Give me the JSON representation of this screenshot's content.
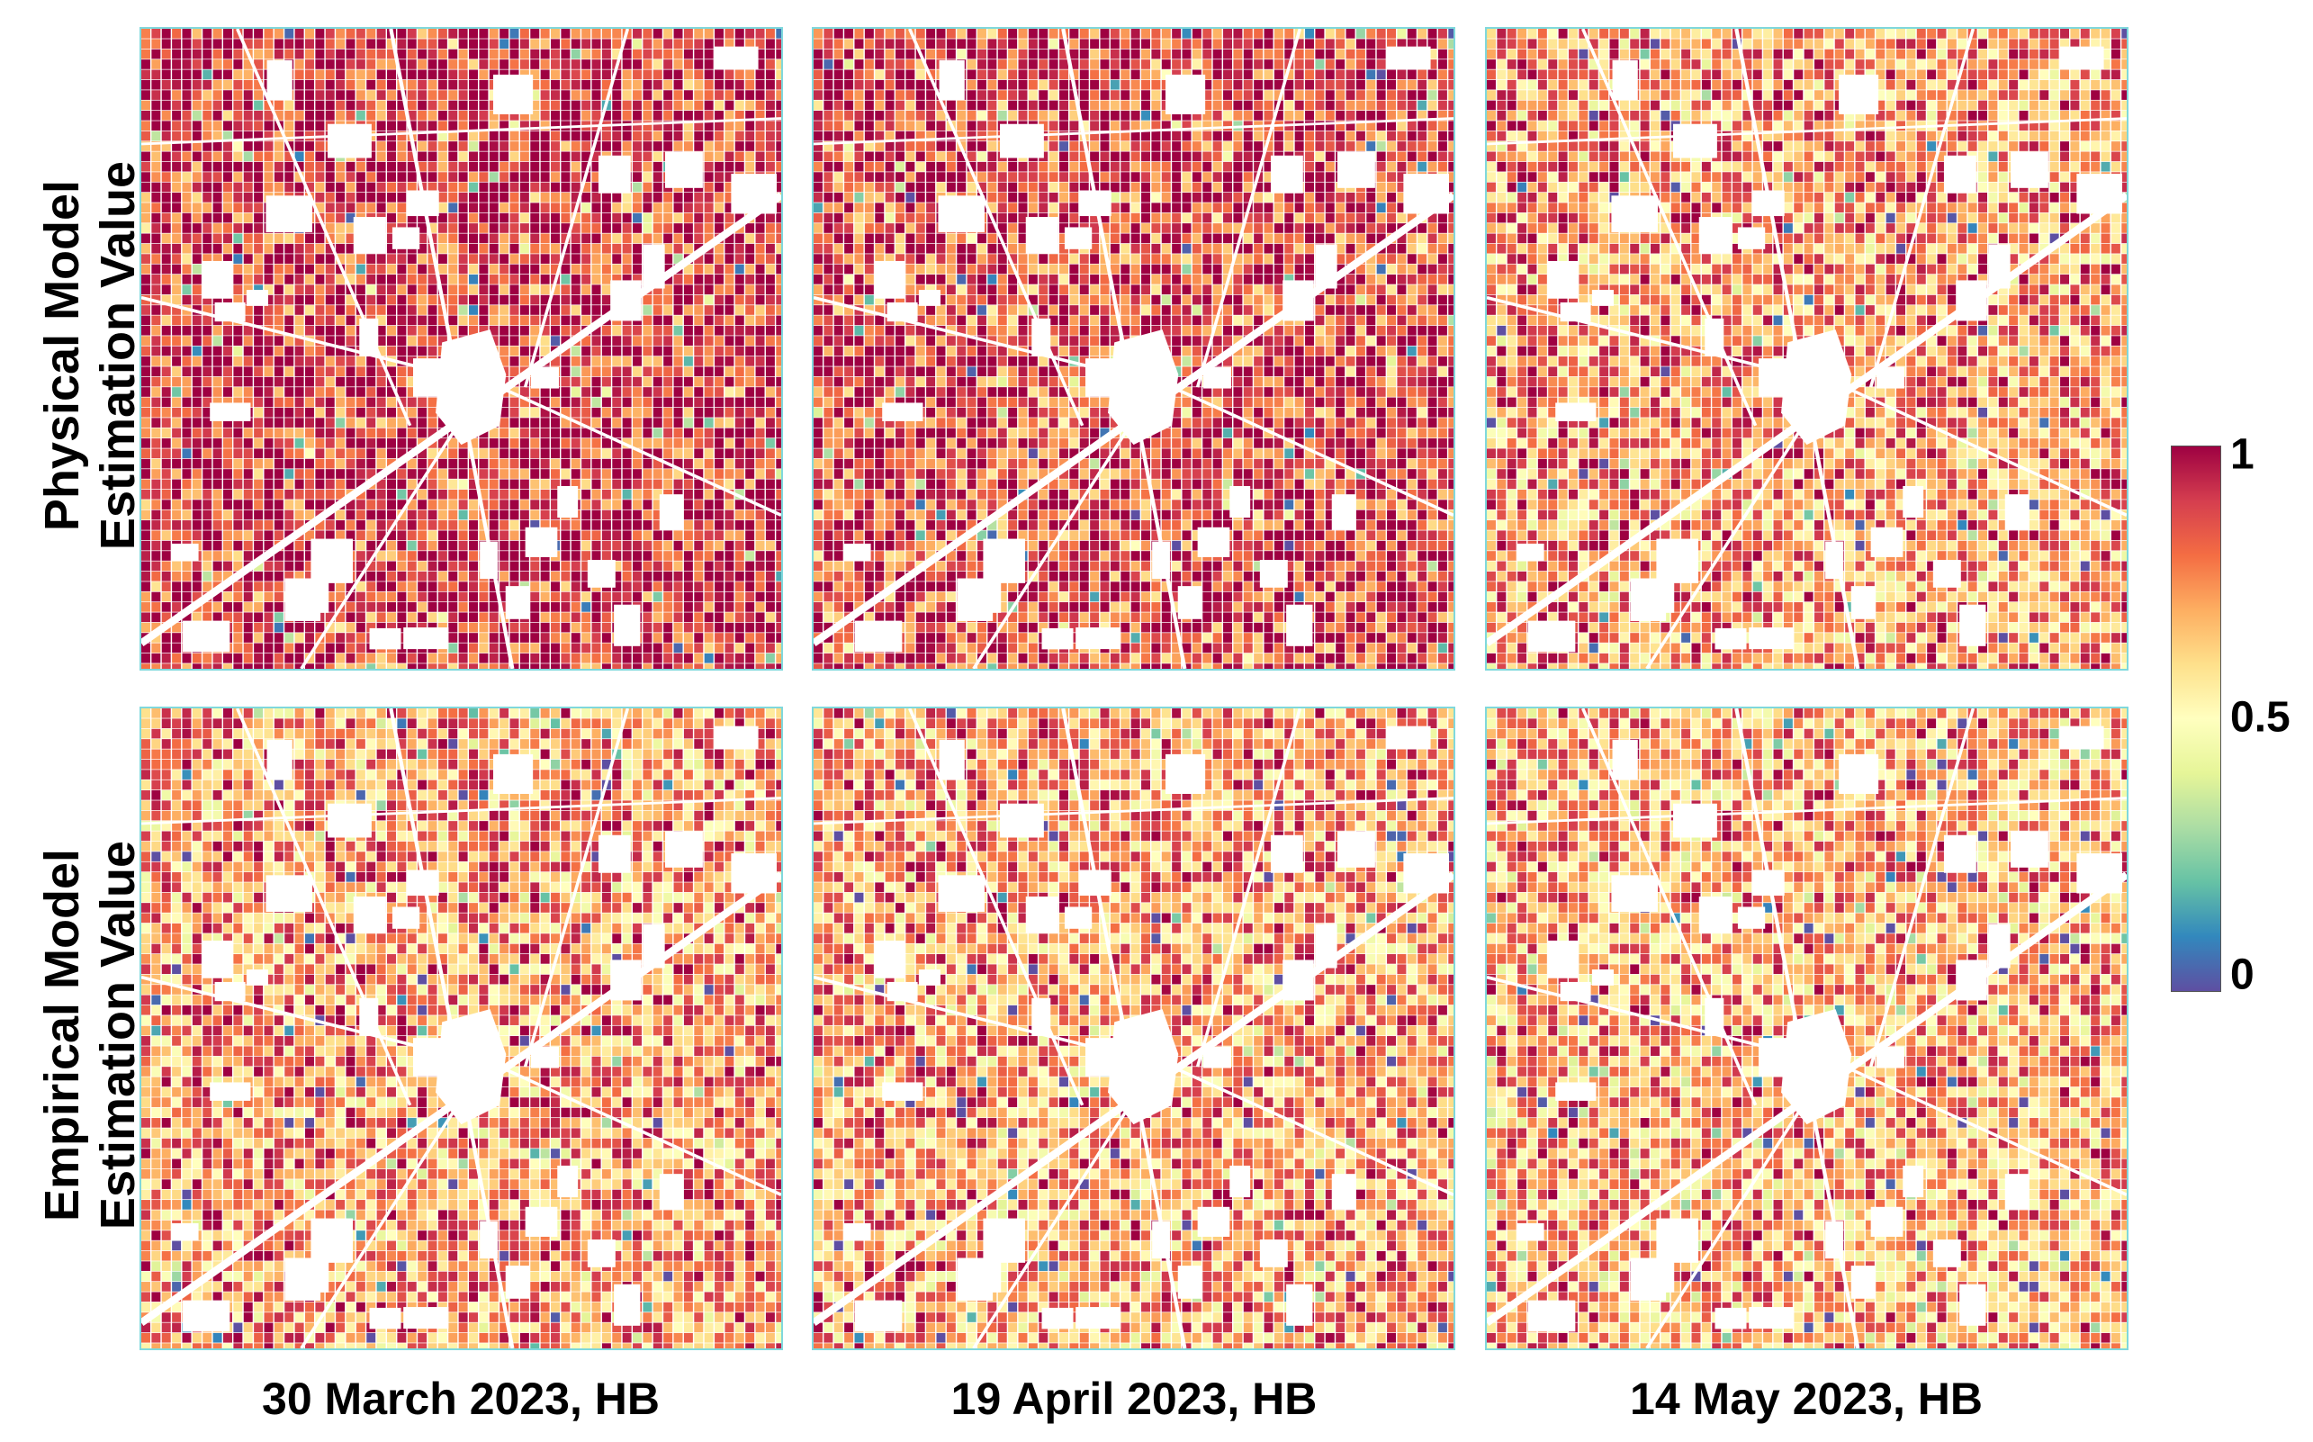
{
  "row_labels": [
    {
      "line1": "Physical Model",
      "line2": "Estimation Value"
    },
    {
      "line1": "Empirical Model",
      "line2": "Estimation Value"
    }
  ],
  "column_labels": [
    "30 March 2023, HB",
    "19 April 2023, HB",
    "14 May 2023, HB"
  ],
  "colorbar": {
    "tick_labels": [
      "1",
      "0.5",
      "0"
    ],
    "min": 0,
    "max": 1,
    "colors": [
      "#5e4fa2",
      "#3288bd",
      "#66c2a5",
      "#abdda4",
      "#e6f598",
      "#ffffbf",
      "#fee08b",
      "#fdae61",
      "#f46d43",
      "#d53e4f",
      "#9e0142"
    ]
  },
  "panel_mean_values": [
    [
      0.92,
      0.88,
      0.74
    ],
    [
      0.74,
      0.72,
      0.7
    ]
  ],
  "colors": {
    "panel_border": "#7fd8dc",
    "masked_area": "#ffffff"
  }
}
